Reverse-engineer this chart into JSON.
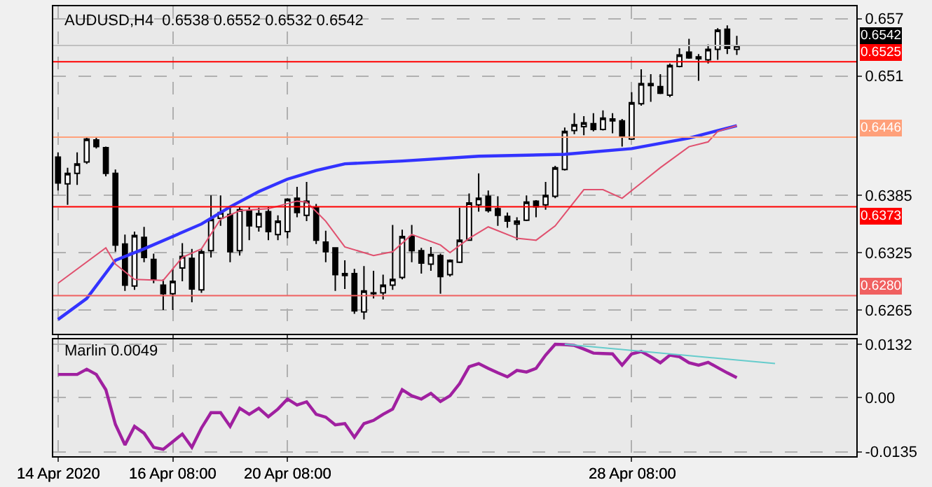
{
  "chart_data": [
    {
      "type": "candlestick",
      "title": "AUDUSD,H4  0.6538 0.6552 0.6532 0.6542",
      "categories": [
        "14 Apr 2020",
        null,
        null,
        null,
        null,
        null,
        null,
        null,
        null,
        null,
        null,
        null,
        "16 Apr 08:00",
        null,
        null,
        null,
        null,
        null,
        null,
        null,
        null,
        null,
        null,
        null,
        "20 Apr 08:00",
        null,
        null,
        null,
        null,
        null,
        null,
        null,
        null,
        null,
        null,
        null,
        null,
        null,
        null,
        null,
        null,
        null,
        null,
        null,
        null,
        null,
        null,
        null,
        null,
        null,
        null,
        null,
        null,
        null,
        null,
        null,
        null,
        null,
        null,
        null,
        "28 Apr 08:00",
        null,
        null,
        null,
        null,
        null,
        null,
        null,
        null,
        null,
        null,
        null,
        null,
        null,
        null,
        null,
        null,
        null,
        null,
        null,
        null,
        null,
        null,
        null
      ],
      "ohlc": [
        [
          0.6425,
          0.643,
          0.639,
          0.6398
        ],
        [
          0.6397,
          0.6414,
          0.6375,
          0.6408
        ],
        [
          0.6408,
          0.643,
          0.6396,
          0.6418
        ],
        [
          0.642,
          0.6446,
          0.6418,
          0.6444
        ],
        [
          0.6443,
          0.6446,
          0.6434,
          0.6436
        ],
        [
          0.6435,
          0.6436,
          0.6405,
          0.6408
        ],
        [
          0.6408,
          0.6412,
          0.6326,
          0.6333
        ],
        [
          0.6334,
          0.6344,
          0.6285,
          0.6291
        ],
        [
          0.629,
          0.6347,
          0.6286,
          0.6343
        ],
        [
          0.6341,
          0.6352,
          0.6315,
          0.632
        ],
        [
          0.6318,
          0.6324,
          0.6293,
          0.6297
        ],
        [
          0.6291,
          0.6297,
          0.6265,
          0.6282
        ],
        [
          0.6282,
          0.6308,
          0.6265,
          0.6295
        ],
        [
          0.6309,
          0.6335,
          0.6295,
          0.6321
        ],
        [
          0.6319,
          0.6329,
          0.6273,
          0.6287
        ],
        [
          0.6286,
          0.6329,
          0.6283,
          0.6326
        ],
        [
          0.6327,
          0.6385,
          0.632,
          0.636
        ],
        [
          0.6361,
          0.6385,
          0.6353,
          0.6367
        ],
        [
          0.6365,
          0.6372,
          0.6315,
          0.6326
        ],
        [
          0.6327,
          0.6373,
          0.6322,
          0.637
        ],
        [
          0.6369,
          0.6373,
          0.6338,
          0.6353
        ],
        [
          0.6352,
          0.6372,
          0.6347,
          0.6366
        ],
        [
          0.6368,
          0.6373,
          0.6338,
          0.6347
        ],
        [
          0.6344,
          0.6364,
          0.6338,
          0.6358
        ],
        [
          0.6347,
          0.6382,
          0.634,
          0.6381
        ],
        [
          0.6382,
          0.6394,
          0.6362,
          0.6367
        ],
        [
          0.6364,
          0.6399,
          0.6358,
          0.6379
        ],
        [
          0.6372,
          0.6376,
          0.6334,
          0.6338
        ],
        [
          0.6336,
          0.6348,
          0.6315,
          0.6326
        ],
        [
          0.633,
          0.633,
          0.6285,
          0.6302
        ],
        [
          0.6303,
          0.6317,
          0.6287,
          0.6301
        ],
        [
          0.6303,
          0.6308,
          0.6261,
          0.6264
        ],
        [
          0.6263,
          0.6311,
          0.6255,
          0.6285
        ],
        [
          0.6283,
          0.6306,
          0.6277,
          0.6282
        ],
        [
          0.6283,
          0.6302,
          0.6276,
          0.6291
        ],
        [
          0.6291,
          0.6354,
          0.6286,
          0.6297
        ],
        [
          0.6299,
          0.6349,
          0.6297,
          0.6342
        ],
        [
          0.6342,
          0.6354,
          0.6315,
          0.6327
        ],
        [
          0.6327,
          0.633,
          0.6303,
          0.6314
        ],
        [
          0.6313,
          0.6331,
          0.6306,
          0.6323
        ],
        [
          0.6322,
          0.6324,
          0.6282,
          0.63
        ],
        [
          0.6302,
          0.6318,
          0.63,
          0.6317
        ],
        [
          0.6315,
          0.6372,
          0.6314,
          0.6338
        ],
        [
          0.6338,
          0.6387,
          0.6338,
          0.6377
        ],
        [
          0.6375,
          0.6408,
          0.6368,
          0.6382
        ],
        [
          0.6384,
          0.639,
          0.6367,
          0.6369
        ],
        [
          0.6371,
          0.6384,
          0.6353,
          0.6364
        ],
        [
          0.6363,
          0.6367,
          0.6351,
          0.6358
        ],
        [
          0.6355,
          0.6362,
          0.6338,
          0.6358
        ],
        [
          0.6359,
          0.6385,
          0.6358,
          0.6378
        ],
        [
          0.6379,
          0.638,
          0.6362,
          0.6373
        ],
        [
          0.6375,
          0.6399,
          0.637,
          0.6385
        ],
        [
          0.6384,
          0.6416,
          0.6382,
          0.6414
        ],
        [
          0.6412,
          0.6456,
          0.6411,
          0.6452
        ],
        [
          0.6453,
          0.6471,
          0.6449,
          0.6459
        ],
        [
          0.6457,
          0.6468,
          0.6448,
          0.6461
        ],
        [
          0.646,
          0.6471,
          0.6452,
          0.6454
        ],
        [
          0.6454,
          0.6474,
          0.6453,
          0.6466
        ],
        [
          0.6465,
          0.6471,
          0.645,
          0.6463
        ],
        [
          0.6463,
          0.6465,
          0.6436,
          0.6446
        ],
        [
          0.6444,
          0.6493,
          0.6443,
          0.6482
        ],
        [
          0.6481,
          0.6517,
          0.6479,
          0.6502
        ],
        [
          0.65,
          0.6512,
          0.6483,
          0.6502
        ],
        [
          0.6499,
          0.6512,
          0.6491,
          0.6492
        ],
        [
          0.649,
          0.6523,
          0.6488,
          0.6521
        ],
        [
          0.652,
          0.6539,
          0.6519,
          0.6532
        ],
        [
          0.6535,
          0.6549,
          0.6528,
          0.6529
        ],
        [
          0.653,
          0.6533,
          0.6505,
          0.6528
        ],
        [
          0.6527,
          0.6543,
          0.6523,
          0.6538
        ],
        [
          0.6538,
          0.656,
          0.6527,
          0.6558
        ],
        [
          0.6559,
          0.6563,
          0.6533,
          0.6539
        ],
        [
          0.6538,
          0.6552,
          0.6532,
          0.6542
        ],
        null,
        null,
        null,
        null,
        null,
        null,
        null,
        null,
        null,
        null,
        null,
        null
      ],
      "series": [
        {
          "type": "line",
          "color": "#3333ff",
          "values": [
            0.6255,
            null,
            null,
            0.6277,
            null,
            null,
            0.6317,
            null,
            null,
            0.6329,
            null,
            null,
            0.6342,
            null,
            null,
            0.6355,
            null,
            null,
            0.6373,
            null,
            null,
            0.6389,
            null,
            null,
            0.6402,
            null,
            null,
            0.6411,
            null,
            null,
            0.6418,
            null,
            null,
            null,
            null,
            null,
            0.6421,
            null,
            null,
            null,
            null,
            null,
            null,
            null,
            0.6426,
            null,
            null,
            null,
            null,
            null,
            null,
            null,
            null,
            0.6428,
            null,
            null,
            null,
            null,
            null,
            null,
            0.6434,
            null,
            null,
            null,
            null,
            null,
            0.6445,
            null,
            null,
            null,
            null,
            0.6458,
            null,
            null,
            null,
            null,
            null,
            null,
            null,
            null,
            null,
            null,
            null,
            null
          ]
        },
        {
          "type": "line",
          "color": "#e0506e",
          "values": [
            0.6293,
            null,
            null,
            null,
            null,
            0.633,
            0.6313,
            null,
            0.6297,
            null,
            null,
            0.6296,
            null,
            0.632,
            null,
            0.6329,
            null,
            0.636,
            null,
            0.6369,
            null,
            null,
            0.6371,
            null,
            null,
            0.6379,
            0.6378,
            null,
            0.6358,
            null,
            0.6331,
            null,
            null,
            0.6322,
            null,
            0.6326,
            null,
            0.6344,
            null,
            null,
            0.6333,
            0.6325,
            null,
            0.634,
            null,
            0.6352,
            null,
            null,
            0.634,
            null,
            0.6338,
            null,
            0.6353,
            null,
            null,
            0.6391,
            null,
            0.6391,
            null,
            0.6382,
            null,
            0.6398,
            null,
            0.6414,
            null,
            null,
            0.6436,
            null,
            0.6441,
            0.6452,
            null,
            0.6458,
            null,
            null,
            null,
            null,
            null,
            null,
            null,
            null,
            null,
            null,
            null,
            null
          ]
        }
      ],
      "ylim": [
        0.624,
        0.6583
      ],
      "yticks": [
        0.6265,
        0.6325,
        0.6385,
        0.651,
        0.657
      ],
      "ref_lines": [
        {
          "axis": "y",
          "value": 0.6542,
          "label": "0.6542",
          "color": "#c0c0c0"
        },
        {
          "axis": "y",
          "value": 0.6525,
          "label": "0.6525",
          "color": "#ff0000"
        },
        {
          "axis": "y",
          "value": 0.6446,
          "label": "0.6446",
          "color": "#ffa07a"
        },
        {
          "axis": "y",
          "value": 0.6373,
          "label": "0.6373",
          "color": "#ff0000"
        },
        {
          "axis": "y",
          "value": 0.628,
          "label": "0.6280",
          "color": "#f06060"
        }
      ],
      "grid": true,
      "tick_labels": "y"
    },
    {
      "type": "line",
      "title": "Marlin 0.0049",
      "categories": [
        "14 Apr 2020",
        null,
        null,
        null,
        null,
        null,
        null,
        null,
        null,
        null,
        null,
        null,
        "16 Apr 08:00",
        null,
        null,
        null,
        null,
        null,
        null,
        null,
        null,
        null,
        null,
        null,
        "20 Apr 08:00",
        null,
        null,
        null,
        null,
        null,
        null,
        null,
        null,
        null,
        null,
        null,
        null,
        null,
        null,
        null,
        null,
        null,
        null,
        null,
        null,
        null,
        null,
        null,
        null,
        null,
        null,
        null,
        null,
        null,
        null,
        null,
        null,
        null,
        null,
        null,
        "28 Apr 08:00",
        null,
        null,
        null,
        null,
        null,
        null,
        null,
        null,
        null,
        null,
        null,
        null,
        null,
        null,
        null,
        null,
        null,
        null,
        null,
        null,
        null,
        null,
        null
      ],
      "series": [
        {
          "color": "#a020a0",
          "values": [
            0.0057,
            0.0057,
            0.0057,
            0.007,
            0.0057,
            0.0019,
            -0.0067,
            -0.0118,
            -0.0072,
            -0.0089,
            -0.0124,
            -0.0129,
            -0.011,
            -0.0091,
            -0.0124,
            -0.0076,
            -0.0038,
            -0.0038,
            -0.0072,
            -0.0027,
            -0.0042,
            -0.0027,
            -0.0048,
            -0.0029,
            -0.0004,
            -0.0019,
            -0.0011,
            -0.0042,
            -0.0049,
            -0.0068,
            -0.0065,
            -0.0099,
            -0.0065,
            -0.0057,
            -0.0042,
            -0.0029,
            0.0019,
            0.0004,
            -0.0004,
            0.001,
            -0.001,
            0.0004,
            0.0034,
            0.0076,
            0.0084,
            0.0072,
            0.0061,
            0.0051,
            0.0067,
            0.0063,
            0.0072,
            0.0105,
            0.0132,
            0.0131,
            0.0129,
            0.012,
            0.011,
            0.0109,
            0.0108,
            0.008,
            0.0108,
            0.0114,
            0.0101,
            0.0086,
            0.0105,
            0.0101,
            0.0086,
            0.008,
            0.0087,
            0.0074,
            0.0061,
            0.0049,
            null,
            null,
            null,
            null,
            null,
            null,
            null,
            null,
            null,
            null,
            null,
            null
          ]
        },
        {
          "color": "#66cccc",
          "values": [
            null,
            null,
            null,
            null,
            null,
            null,
            null,
            null,
            null,
            null,
            null,
            null,
            null,
            null,
            null,
            null,
            null,
            null,
            null,
            null,
            null,
            null,
            null,
            null,
            null,
            null,
            null,
            null,
            null,
            null,
            null,
            null,
            null,
            null,
            null,
            null,
            null,
            null,
            null,
            null,
            null,
            null,
            null,
            null,
            null,
            null,
            null,
            null,
            null,
            null,
            null,
            null,
            null,
            0.0132,
            null,
            null,
            null,
            null,
            null,
            null,
            null,
            null,
            null,
            null,
            null,
            null,
            null,
            null,
            null,
            null,
            null,
            null,
            null,
            null,
            null,
            0.0084,
            null,
            null,
            null,
            null,
            null,
            null,
            null,
            null
          ]
        }
      ],
      "ylim": [
        -0.0146,
        0.0144
      ],
      "yticks": [
        -0.0135,
        {
          "value": 0,
          "label": "0.00"
        },
        0.0132
      ],
      "grid": true
    }
  ]
}
